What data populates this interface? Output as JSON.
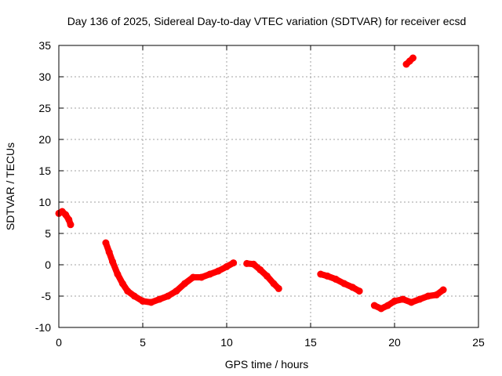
{
  "chart_data": {
    "type": "scatter",
    "title": "Day 136 of 2025, Sidereal Day-to-day VTEC variation (SDTVAR) for receiver ecsd",
    "xlabel": "GPS time / hours",
    "ylabel": "SDTVAR / TECUs",
    "xlim": [
      0,
      25
    ],
    "ylim": [
      -10,
      35
    ],
    "x_ticks": [
      0,
      5,
      10,
      15,
      20,
      25
    ],
    "y_ticks": [
      -10,
      -5,
      0,
      5,
      10,
      15,
      20,
      25,
      30,
      35
    ],
    "grid": true,
    "legend": "none",
    "series_color": "#ff0000",
    "series": [
      {
        "name": "segment-1",
        "x": [
          0.0,
          0.2,
          0.4,
          0.6,
          0.7
        ],
        "y": [
          8.2,
          8.5,
          8.0,
          7.2,
          6.4
        ]
      },
      {
        "name": "segment-2",
        "x": [
          2.8,
          3.0,
          3.2,
          3.5,
          3.8,
          4.1,
          4.5,
          5.0,
          5.5,
          6.0,
          6.5,
          7.0,
          7.5,
          8.0,
          8.5,
          9.0,
          9.5,
          10.0,
          10.4
        ],
        "y": [
          3.5,
          2.0,
          0.5,
          -1.5,
          -3.0,
          -4.2,
          -5.0,
          -5.8,
          -6.0,
          -5.5,
          -5.0,
          -4.2,
          -3.0,
          -2.0,
          -2.0,
          -1.5,
          -1.0,
          -0.3,
          0.3
        ]
      },
      {
        "name": "segment-3",
        "x": [
          11.2,
          11.6,
          12.0,
          12.4,
          12.8,
          13.1
        ],
        "y": [
          0.2,
          0.1,
          -0.8,
          -1.8,
          -3.0,
          -3.8
        ]
      },
      {
        "name": "segment-4",
        "x": [
          15.6,
          16.0,
          16.5,
          17.0,
          17.5,
          17.9
        ],
        "y": [
          -1.5,
          -1.8,
          -2.3,
          -3.0,
          -3.6,
          -4.2
        ]
      },
      {
        "name": "segment-5",
        "x": [
          18.8,
          19.2,
          19.6,
          20.0,
          20.5,
          21.0,
          21.5,
          22.0,
          22.5,
          22.9
        ],
        "y": [
          -6.5,
          -7.0,
          -6.5,
          -5.8,
          -5.5,
          -6.0,
          -5.5,
          -5.0,
          -4.8,
          -4.0
        ]
      },
      {
        "name": "segment-6",
        "x": [
          20.7,
          20.9,
          21.1
        ],
        "y": [
          32.0,
          32.5,
          33.0
        ]
      }
    ]
  }
}
